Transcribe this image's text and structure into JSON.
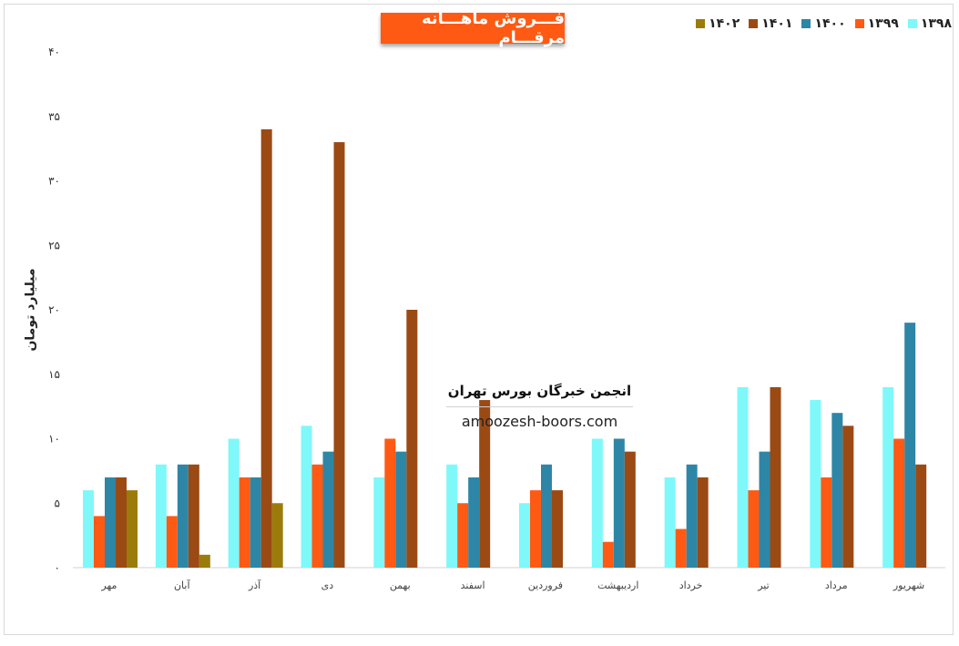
{
  "chart_data": {
    "type": "bar",
    "title": "فـــروش ماهـــانه مرقـــام",
    "ylabel": "میلیارد تومان",
    "xlabel": "",
    "ylim": [
      0,
      40
    ],
    "yticks": [
      "۰",
      "۵",
      "۱۰",
      "۱۵",
      "۲۰",
      "۲۵",
      "۳۰",
      "۳۵",
      "۴۰"
    ],
    "categories": [
      "مهر",
      "آبان",
      "آذر",
      "دی",
      "بهمن",
      "اسفند",
      "فروردین",
      "اردیبهشت",
      "خرداد",
      "تیر",
      "مرداد",
      "شهریور"
    ],
    "series": [
      {
        "name": "۱۳۹۸",
        "color": "#7ff8fa",
        "values": [
          6,
          8,
          10,
          11,
          7,
          8,
          5,
          10,
          7,
          14,
          13,
          14
        ]
      },
      {
        "name": "۱۳۹۹",
        "color": "#fe5a14",
        "values": [
          4,
          4,
          7,
          8,
          10,
          5,
          6,
          2,
          3,
          6,
          7,
          10
        ]
      },
      {
        "name": "۱۴۰۰",
        "color": "#2e86a6",
        "values": [
          7,
          8,
          7,
          9,
          9,
          7,
          8,
          10,
          8,
          9,
          12,
          19
        ]
      },
      {
        "name": "۱۴۰۱",
        "color": "#9b4a14",
        "values": [
          7,
          8,
          34,
          33,
          20,
          13,
          6,
          9,
          7,
          14,
          11,
          8
        ]
      },
      {
        "name": "۱۴۰۲",
        "color": "#9b7c0a",
        "values": [
          6,
          1,
          5,
          null,
          null,
          null,
          null,
          null,
          null,
          null,
          null,
          null
        ]
      }
    ],
    "legend_position": "top-right",
    "grid": false
  },
  "watermark": {
    "title": "انجمن خبرگان بورس تهران",
    "url": "amoozesh-boors.com"
  }
}
